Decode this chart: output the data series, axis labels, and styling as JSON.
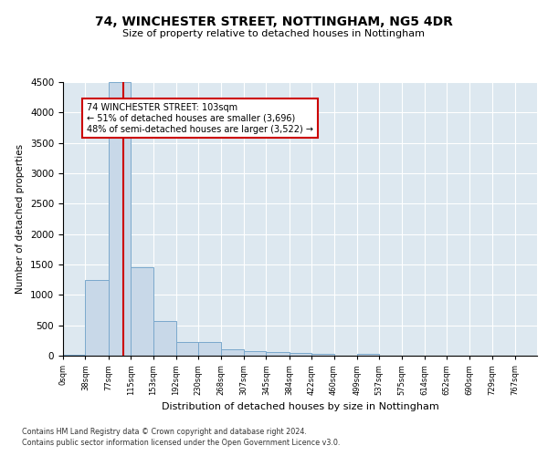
{
  "title1": "74, WINCHESTER STREET, NOTTINGHAM, NG5 4DR",
  "title2": "Size of property relative to detached houses in Nottingham",
  "xlabel": "Distribution of detached houses by size in Nottingham",
  "ylabel": "Number of detached properties",
  "footnote1": "Contains HM Land Registry data © Crown copyright and database right 2024.",
  "footnote2": "Contains public sector information licensed under the Open Government Licence v3.0.",
  "bar_edges": [
    0,
    38,
    77,
    115,
    153,
    192,
    230,
    268,
    307,
    345,
    384,
    422,
    460,
    499,
    537,
    575,
    614,
    652,
    690,
    729,
    767
  ],
  "bar_heights": [
    10,
    1250,
    4500,
    1450,
    570,
    220,
    220,
    110,
    80,
    60,
    40,
    30,
    0,
    30,
    0,
    0,
    0,
    0,
    0,
    0
  ],
  "bar_color": "#c8d8e8",
  "bar_edge_color": "#7aa8cc",
  "vline_x": 103,
  "vline_color": "#cc0000",
  "ylim": [
    0,
    4500
  ],
  "annotation_text": "74 WINCHESTER STREET: 103sqm\n← 51% of detached houses are smaller (3,696)\n48% of semi-detached houses are larger (3,522) →",
  "annotation_box_color": "white",
  "annotation_box_edgecolor": "#cc0000",
  "tick_labels": [
    "0sqm",
    "38sqm",
    "77sqm",
    "115sqm",
    "153sqm",
    "192sqm",
    "230sqm",
    "268sqm",
    "307sqm",
    "345sqm",
    "384sqm",
    "422sqm",
    "460sqm",
    "499sqm",
    "537sqm",
    "575sqm",
    "614sqm",
    "652sqm",
    "690sqm",
    "729sqm",
    "767sqm"
  ],
  "bg_color": "#dde8f0",
  "fig_bg_color": "#ffffff",
  "yticks": [
    0,
    500,
    1000,
    1500,
    2000,
    2500,
    3000,
    3500,
    4000,
    4500
  ]
}
